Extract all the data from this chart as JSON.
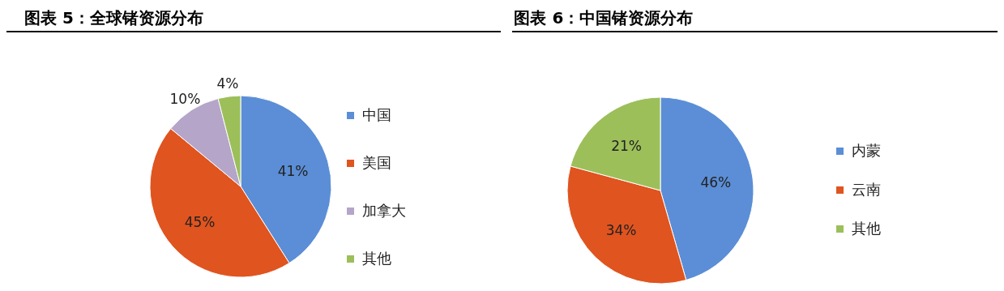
{
  "chart_data": [
    {
      "type": "pie",
      "title": "图表 5：全球锗资源分布",
      "categories": [
        "中国",
        "美国",
        "加拿大",
        "其他"
      ],
      "values": [
        41,
        45,
        10,
        4
      ],
      "colors": [
        "#5b8ed6",
        "#e0541f",
        "#b4a5c9",
        "#9cbf5a"
      ],
      "value_labels": [
        "41%",
        "45%",
        "10%",
        "4%"
      ],
      "legend": "right"
    },
    {
      "type": "pie",
      "title": "图表 6：中国锗资源分布",
      "categories": [
        "内蒙",
        "云南",
        "其他"
      ],
      "values": [
        46,
        34,
        21
      ],
      "colors": [
        "#5b8ed6",
        "#e0541f",
        "#9cbf5a"
      ],
      "value_labels": [
        "46%",
        "34%",
        "21%"
      ],
      "legend": "right"
    }
  ]
}
